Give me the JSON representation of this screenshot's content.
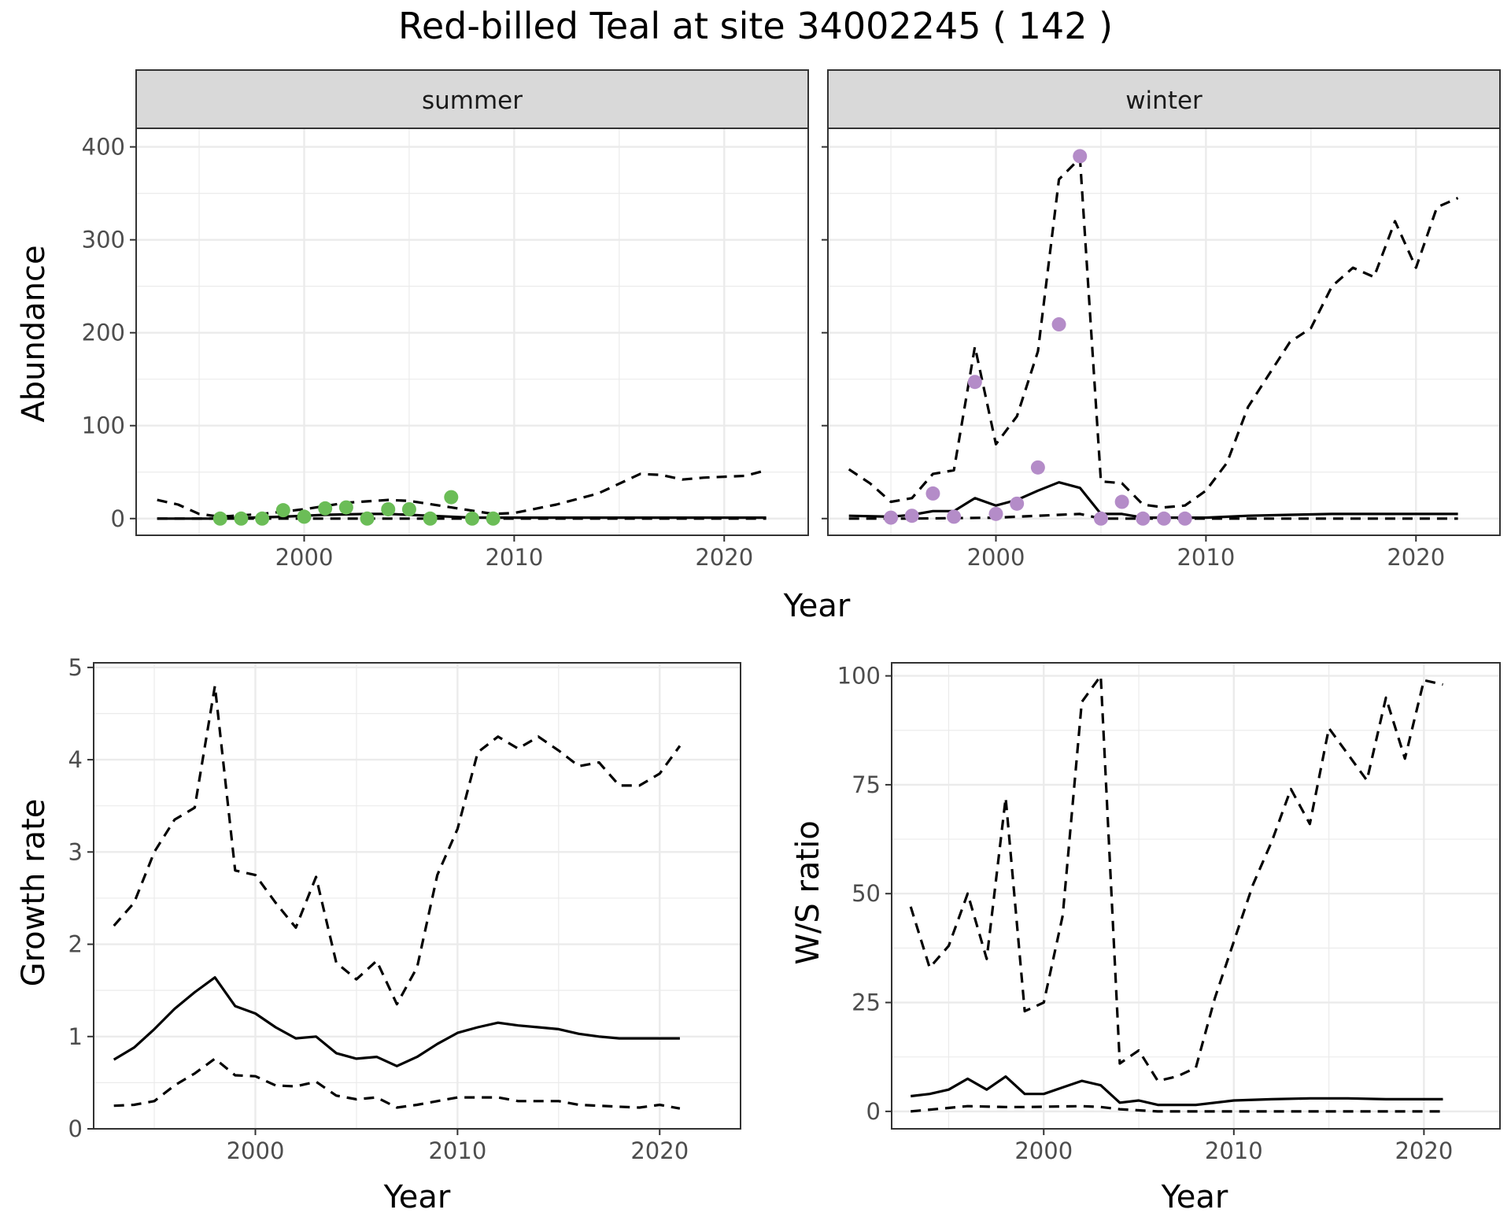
{
  "title": "Red-billed Teal at site 34002245 ( 142 )",
  "colors": {
    "summer_points": "#6bbd57",
    "winter_points": "#b48cc8",
    "lines": "#000000",
    "strip_fill": "#d9d9d9",
    "grid": "#ebebeb"
  },
  "chart_data": [
    {
      "type": "line",
      "facet": "summer",
      "strip_label": "summer",
      "xlabel": "Year",
      "ylabel": "Abundance",
      "xlim": [
        1992,
        2024
      ],
      "ylim": [
        -18,
        420
      ],
      "x_ticks": [
        2000,
        2010,
        2020
      ],
      "y_ticks": [
        0,
        100,
        200,
        300,
        400
      ],
      "grid": true,
      "series": [
        {
          "style": "solid",
          "x": [
            1993,
            1996,
            1999,
            2001,
            2003,
            2004,
            2006,
            2008,
            2010,
            2015,
            2020,
            2022
          ],
          "y": [
            0,
            0,
            2,
            4,
            5,
            5,
            3,
            1,
            1,
            1,
            1,
            1
          ]
        },
        {
          "style": "dashed",
          "x": [
            1993,
            1994,
            1995,
            1996,
            1998,
            2000,
            2002,
            2004,
            2005,
            2007,
            2009,
            2010,
            2012,
            2014,
            2016,
            2017,
            2018,
            2019,
            2021,
            2022
          ],
          "y": [
            20,
            15,
            5,
            2,
            5,
            10,
            17,
            20,
            19,
            12,
            5,
            6,
            15,
            27,
            48,
            47,
            42,
            44,
            46,
            52
          ]
        },
        {
          "style": "dashed",
          "x": [
            1993,
            1996,
            2000,
            2005,
            2010,
            2022
          ],
          "y": [
            0,
            0,
            0,
            0,
            0,
            0
          ]
        }
      ],
      "points": {
        "x": [
          1996,
          1997,
          1998,
          1999,
          2000,
          2001,
          2002,
          2003,
          2004,
          2005,
          2006,
          2007,
          2008,
          2009
        ],
        "y": [
          0,
          0,
          0,
          9,
          2,
          11,
          12,
          0,
          10,
          10,
          0,
          23,
          0,
          0
        ]
      }
    },
    {
      "type": "line",
      "facet": "winter",
      "strip_label": "winter",
      "xlabel": "Year",
      "ylabel": "Abundance",
      "xlim": [
        1992,
        2024
      ],
      "ylim": [
        -18,
        420
      ],
      "x_ticks": [
        2000,
        2010,
        2020
      ],
      "y_ticks": [
        0,
        100,
        200,
        300,
        400
      ],
      "grid": true,
      "series": [
        {
          "style": "solid",
          "x": [
            1993,
            1995,
            1996,
            1997,
            1998,
            1999,
            2000,
            2001,
            2002,
            2003,
            2004,
            2005,
            2006,
            2007,
            2008,
            2010,
            2012,
            2014,
            2016,
            2018,
            2020,
            2022
          ],
          "y": [
            3,
            2,
            4,
            8,
            8,
            22,
            14,
            20,
            30,
            39,
            33,
            5,
            5,
            1,
            1,
            1,
            3,
            4,
            5,
            5,
            5,
            5
          ]
        },
        {
          "style": "dashed",
          "x": [
            1993,
            1994,
            1995,
            1996,
            1997,
            1998,
            1999,
            2000,
            2001,
            2002,
            2003,
            2004,
            2005,
            2006,
            2007,
            2008,
            2009,
            2010,
            2011,
            2012,
            2013,
            2014,
            2015,
            2016,
            2017,
            2018,
            2019,
            2020,
            2021,
            2022
          ],
          "y": [
            53,
            38,
            18,
            22,
            48,
            52,
            185,
            80,
            110,
            180,
            365,
            388,
            40,
            38,
            15,
            12,
            14,
            30,
            60,
            120,
            155,
            190,
            205,
            250,
            270,
            260,
            320,
            270,
            335,
            345
          ]
        },
        {
          "style": "dashed",
          "x": [
            1993,
            1996,
            2000,
            2002,
            2003,
            2004,
            2005,
            2008,
            2012,
            2022
          ],
          "y": [
            0,
            0,
            1,
            3,
            4,
            5,
            0,
            0,
            0,
            0
          ]
        }
      ],
      "points": {
        "x": [
          1995,
          1996,
          1997,
          1998,
          1999,
          2000,
          2001,
          2002,
          2003,
          2004,
          2005,
          2006,
          2007,
          2008,
          2009
        ],
        "y": [
          1,
          3,
          27,
          2,
          147,
          5,
          16,
          55,
          209,
          390,
          0,
          18,
          0,
          0,
          0
        ]
      }
    },
    {
      "type": "line",
      "xlabel": "Year",
      "ylabel": "Growth rate",
      "xlim": [
        1992,
        2024
      ],
      "ylim": [
        0,
        5.05
      ],
      "x_ticks": [
        2000,
        2010,
        2020
      ],
      "y_ticks": [
        0,
        1,
        2,
        3,
        4,
        5
      ],
      "grid": true,
      "series": [
        {
          "style": "solid",
          "x": [
            1993,
            1994,
            1995,
            1996,
            1997,
            1998,
            1999,
            2000,
            2001,
            2002,
            2003,
            2004,
            2005,
            2006,
            2007,
            2008,
            2009,
            2010,
            2011,
            2012,
            2013,
            2014,
            2015,
            2016,
            2017,
            2018,
            2019,
            2020,
            2021
          ],
          "y": [
            0.75,
            0.88,
            1.08,
            1.3,
            1.48,
            1.64,
            1.33,
            1.25,
            1.1,
            0.98,
            1.0,
            0.82,
            0.76,
            0.78,
            0.68,
            0.78,
            0.92,
            1.04,
            1.1,
            1.15,
            1.12,
            1.1,
            1.08,
            1.03,
            1.0,
            0.98,
            0.98,
            0.98,
            0.98
          ]
        },
        {
          "style": "dashed",
          "x": [
            1993,
            1994,
            1995,
            1996,
            1997,
            1998,
            1999,
            2000,
            2001,
            2002,
            2003,
            2004,
            2005,
            2006,
            2007,
            2008,
            2009,
            2010,
            2011,
            2012,
            2013,
            2014,
            2015,
            2016,
            2017,
            2018,
            2019,
            2020,
            2021
          ],
          "y": [
            2.2,
            2.45,
            3.0,
            3.35,
            3.48,
            4.8,
            2.8,
            2.75,
            2.45,
            2.18,
            2.73,
            1.8,
            1.62,
            1.82,
            1.35,
            1.75,
            2.75,
            3.25,
            4.08,
            4.25,
            4.12,
            4.25,
            4.1,
            3.93,
            3.97,
            3.72,
            3.72,
            3.85,
            4.15
          ]
        },
        {
          "style": "dashed",
          "x": [
            1993,
            1994,
            1995,
            1996,
            1997,
            1998,
            1999,
            2000,
            2001,
            2002,
            2003,
            2004,
            2005,
            2006,
            2007,
            2008,
            2009,
            2010,
            2011,
            2012,
            2013,
            2014,
            2015,
            2016,
            2017,
            2018,
            2019,
            2020,
            2021
          ],
          "y": [
            0.25,
            0.26,
            0.3,
            0.47,
            0.6,
            0.76,
            0.58,
            0.57,
            0.47,
            0.46,
            0.51,
            0.36,
            0.32,
            0.34,
            0.23,
            0.26,
            0.3,
            0.34,
            0.34,
            0.34,
            0.3,
            0.3,
            0.3,
            0.26,
            0.25,
            0.24,
            0.23,
            0.26,
            0.22
          ]
        }
      ]
    },
    {
      "type": "line",
      "xlabel": "Year",
      "ylabel": "W/S ratio",
      "xlim": [
        1992,
        2024
      ],
      "ylim": [
        -4,
        103
      ],
      "x_ticks": [
        2000,
        2010,
        2020
      ],
      "y_ticks": [
        0,
        25,
        50,
        75,
        100
      ],
      "grid": true,
      "series": [
        {
          "style": "solid",
          "x": [
            1993,
            1994,
            1995,
            1996,
            1997,
            1998,
            1999,
            2000,
            2001,
            2002,
            2003,
            2004,
            2005,
            2006,
            2008,
            2010,
            2012,
            2014,
            2016,
            2018,
            2021
          ],
          "y": [
            3.5,
            4,
            5,
            7.5,
            5,
            8,
            4,
            4,
            5.5,
            7,
            6,
            2,
            2.5,
            1.5,
            1.5,
            2.5,
            2.8,
            3,
            3,
            2.8,
            2.8
          ]
        },
        {
          "style": "dashed",
          "x": [
            1993,
            1994,
            1995,
            1996,
            1997,
            1998,
            1999,
            2000,
            2001,
            2002,
            2003,
            2004,
            2005,
            2006,
            2007,
            2008,
            2009,
            2010,
            2011,
            2012,
            2013,
            2014,
            2015,
            2016,
            2017,
            2018,
            2019,
            2020,
            2021
          ],
          "y": [
            47,
            33,
            38,
            50,
            35,
            72,
            23,
            25,
            45,
            94,
            100,
            11,
            14,
            7,
            8,
            10,
            26,
            39,
            52,
            62,
            74,
            66,
            88,
            82,
            76,
            95,
            81,
            99,
            98
          ]
        },
        {
          "style": "dashed",
          "x": [
            1993,
            1996,
            1998,
            1999,
            2002,
            2003,
            2004,
            2006,
            2010,
            2021
          ],
          "y": [
            0,
            1.2,
            1,
            1,
            1.2,
            1,
            0.5,
            0,
            0,
            0
          ]
        }
      ]
    }
  ]
}
